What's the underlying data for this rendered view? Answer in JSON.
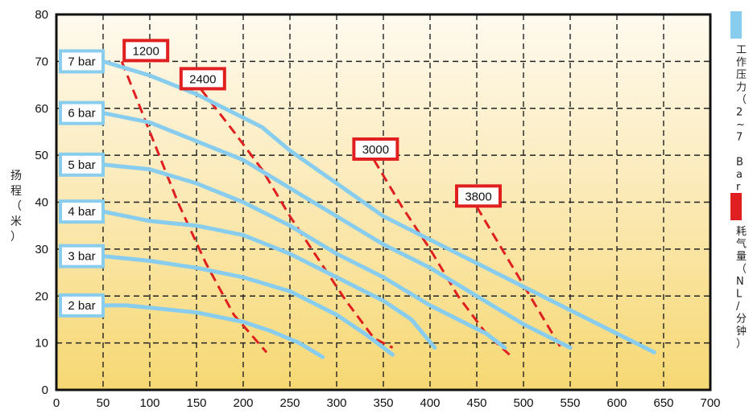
{
  "chart_data": {
    "type": "line",
    "xlim": [
      0,
      700
    ],
    "ylim": [
      0,
      80
    ],
    "x_ticks": [
      "0",
      "50",
      "100",
      "150",
      "200",
      "250",
      "300",
      "350",
      "400",
      "450",
      "500",
      "550",
      "600",
      "650",
      "700"
    ],
    "y_ticks": [
      "0",
      "10",
      "20",
      "30",
      "40",
      "50",
      "60",
      "70",
      "80"
    ],
    "grid": true,
    "ylabel": "扬程（米）",
    "legend": [
      {
        "label": "工作压力（2~7 Bar）",
        "color": "#88ccee"
      },
      {
        "label": "耗气量（NL/分钟）",
        "color": "#e02020"
      }
    ],
    "pressure_series": [
      {
        "name": "7 bar",
        "points": [
          [
            50,
            70
          ],
          [
            100,
            67
          ],
          [
            150,
            63
          ],
          [
            200,
            58
          ],
          [
            220,
            56
          ],
          [
            250,
            51
          ],
          [
            300,
            44
          ],
          [
            350,
            37
          ],
          [
            400,
            32
          ],
          [
            450,
            27
          ],
          [
            500,
            22
          ],
          [
            550,
            17
          ],
          [
            600,
            12
          ],
          [
            640,
            8
          ]
        ]
      },
      {
        "name": "6 bar",
        "points": [
          [
            50,
            59
          ],
          [
            100,
            57
          ],
          [
            150,
            53
          ],
          [
            200,
            49
          ],
          [
            250,
            43
          ],
          [
            300,
            37
          ],
          [
            350,
            31
          ],
          [
            400,
            26
          ],
          [
            450,
            20
          ],
          [
            500,
            14
          ],
          [
            550,
            9
          ]
        ]
      },
      {
        "name": "5 bar",
        "points": [
          [
            50,
            48
          ],
          [
            100,
            47
          ],
          [
            150,
            44
          ],
          [
            200,
            40
          ],
          [
            250,
            35
          ],
          [
            300,
            29
          ],
          [
            350,
            24
          ],
          [
            400,
            18
          ],
          [
            450,
            13
          ],
          [
            460,
            12
          ],
          [
            480,
            9
          ]
        ]
      },
      {
        "name": "4 bar",
        "points": [
          [
            50,
            38
          ],
          [
            100,
            36
          ],
          [
            150,
            35
          ],
          [
            200,
            33
          ],
          [
            250,
            29
          ],
          [
            300,
            24
          ],
          [
            350,
            19
          ],
          [
            380,
            15
          ],
          [
            405,
            9
          ]
        ]
      },
      {
        "name": "3 bar",
        "points": [
          [
            50,
            28.5
          ],
          [
            100,
            27.5
          ],
          [
            150,
            26
          ],
          [
            200,
            24
          ],
          [
            250,
            21
          ],
          [
            300,
            16
          ],
          [
            330,
            12
          ],
          [
            360,
            7.5
          ]
        ]
      },
      {
        "name": "2 bar",
        "points": [
          [
            50,
            18
          ],
          [
            75,
            18
          ],
          [
            100,
            17.5
          ],
          [
            150,
            16.5
          ],
          [
            200,
            14.5
          ],
          [
            230,
            12.5
          ],
          [
            260,
            10
          ],
          [
            285,
            7
          ]
        ]
      }
    ],
    "air_series": [
      {
        "name": "1200",
        "points": [
          [
            70,
            70
          ],
          [
            100,
            55
          ],
          [
            130,
            40
          ],
          [
            160,
            27
          ],
          [
            190,
            16
          ],
          [
            225,
            8
          ]
        ]
      },
      {
        "name": "2400",
        "points": [
          [
            155,
            64
          ],
          [
            190,
            55
          ],
          [
            220,
            47
          ],
          [
            250,
            37
          ],
          [
            280,
            28
          ],
          [
            310,
            19
          ],
          [
            340,
            11
          ],
          [
            360,
            9
          ]
        ]
      },
      {
        "name": "3000",
        "points": [
          [
            340,
            49
          ],
          [
            370,
            39
          ],
          [
            400,
            30
          ],
          [
            430,
            20
          ],
          [
            460,
            12
          ],
          [
            485,
            7.5
          ]
        ]
      },
      {
        "name": "3800",
        "points": [
          [
            450,
            39
          ],
          [
            480,
            29
          ],
          [
            510,
            19
          ],
          [
            540,
            9
          ]
        ]
      }
    ],
    "pressure_color": "#88ccee",
    "air_color": "#e02020"
  }
}
